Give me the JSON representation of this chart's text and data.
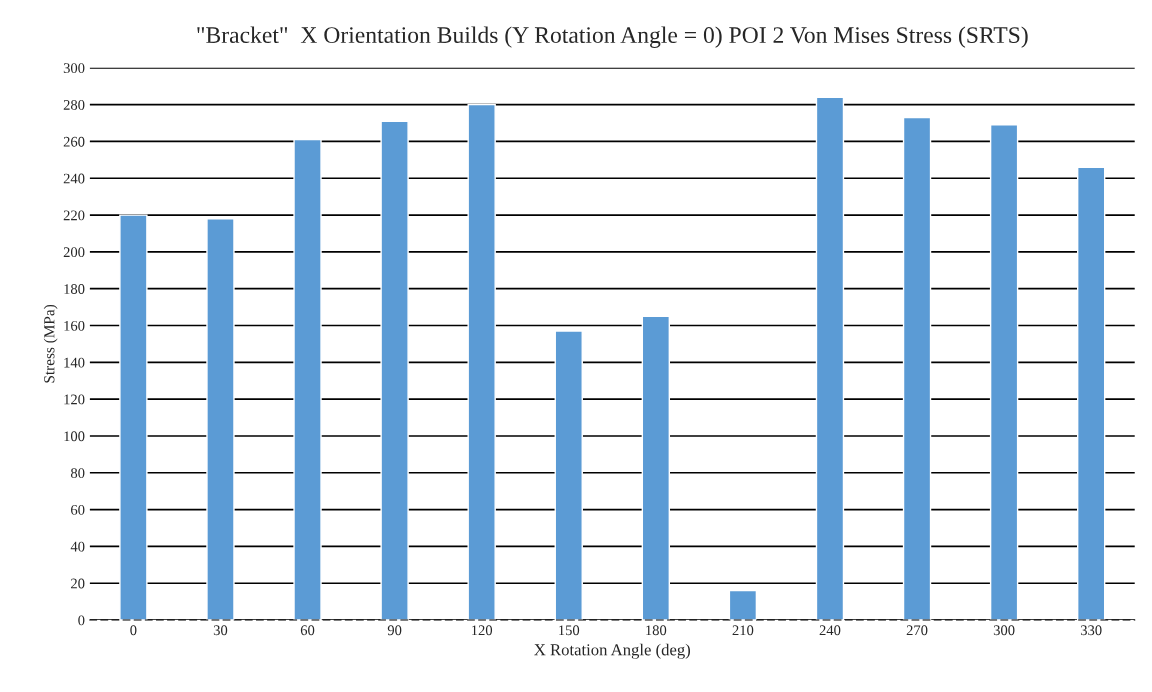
{
  "chart_data": {
    "type": "bar",
    "title": "\"Bracket\"  X Orientation Builds (Y Rotation Angle = 0) POI 2 Von Mises Stress (SRTS)",
    "xlabel": "X Rotation Angle (deg)",
    "ylabel": "Stress (MPa)",
    "categories": [
      "0",
      "30",
      "60",
      "90",
      "120",
      "150",
      "180",
      "210",
      "240",
      "270",
      "300",
      "330"
    ],
    "values": [
      220,
      218,
      261,
      271,
      280,
      157,
      165,
      16,
      284,
      273,
      269,
      246
    ],
    "color": "#5b9bd5",
    "ylim": [
      0,
      300
    ],
    "yticks": [
      0,
      20,
      40,
      60,
      80,
      100,
      120,
      140,
      160,
      180,
      200,
      220,
      240,
      260,
      280,
      300
    ],
    "grid": "y"
  }
}
